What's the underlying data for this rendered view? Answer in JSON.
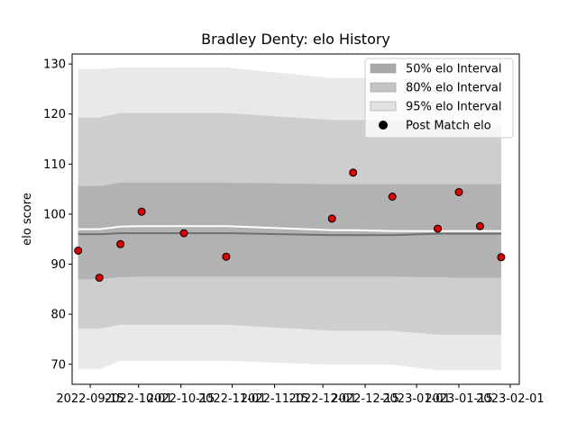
{
  "chart_data": {
    "type": "line",
    "title": "Bradley Denty: elo History",
    "xlabel": "",
    "ylabel": "elo score",
    "ylim": [
      66,
      132
    ],
    "yticks": [
      70,
      80,
      90,
      100,
      110,
      120,
      130
    ],
    "xlim": [
      "2022-09-09",
      "2023-02-04"
    ],
    "xticks": [
      "2022-09-15",
      "2022-10-01",
      "2022-10-15",
      "2022-11-01",
      "2022-11-15",
      "2022-12-01",
      "2022-12-15",
      "2023-01-01",
      "2023-01-15",
      "2023-02-01"
    ],
    "x": [
      "2022-09-11",
      "2022-09-18",
      "2022-09-25",
      "2022-10-02",
      "2022-10-16",
      "2022-10-30",
      "2022-12-04",
      "2022-12-11",
      "2022-12-24",
      "2023-01-08",
      "2023-01-15",
      "2023-01-22",
      "2023-01-29"
    ],
    "series": [
      {
        "name": "Post Match elo",
        "kind": "scatter",
        "values": [
          92.7,
          87.3,
          94.0,
          100.5,
          96.2,
          91.5,
          99.1,
          108.3,
          103.5,
          97.1,
          104.4,
          97.6,
          91.4
        ]
      },
      {
        "name": "",
        "kind": "line",
        "color": "#ffffff",
        "values": [
          97.0,
          97.0,
          97.5,
          97.6,
          97.6,
          97.6,
          96.8,
          96.8,
          96.6,
          96.6,
          96.6,
          96.6,
          96.6
        ]
      },
      {
        "name": "",
        "kind": "line",
        "color": "#707070",
        "values": [
          96.0,
          96.0,
          96.2,
          96.2,
          96.2,
          96.2,
          95.8,
          95.8,
          95.8,
          96.1,
          96.1,
          96.1,
          96.1
        ]
      },
      {
        "name": "50% elo Interval",
        "kind": "band",
        "color": "#a8a8a8",
        "lower": [
          87.0,
          87.0,
          87.4,
          87.5,
          87.5,
          87.5,
          87.5,
          87.5,
          87.5,
          87.4,
          87.3,
          87.3,
          87.3
        ],
        "upper": [
          105.6,
          105.6,
          106.3,
          106.3,
          106.3,
          106.3,
          106.0,
          106.0,
          106.0,
          106.0,
          106.0,
          106.0,
          106.0
        ]
      },
      {
        "name": "80% elo Interval",
        "kind": "band",
        "color": "#c4c4c4",
        "lower": [
          77.1,
          77.1,
          77.9,
          77.9,
          77.9,
          77.9,
          76.7,
          76.7,
          76.7,
          75.9,
          75.9,
          75.9,
          75.9
        ],
        "upper": [
          119.3,
          119.3,
          120.2,
          120.2,
          120.2,
          120.2,
          118.8,
          118.8,
          118.8,
          118.0,
          117.5,
          117.5,
          117.5
        ]
      },
      {
        "name": "95% elo Interval",
        "kind": "band",
        "color": "#e2e2e2",
        "lower": [
          69.0,
          69.0,
          70.7,
          70.7,
          70.7,
          70.7,
          69.9,
          69.9,
          69.9,
          68.8,
          68.8,
          68.8,
          68.8
        ],
        "upper": [
          129.0,
          129.0,
          129.3,
          129.3,
          129.3,
          129.3,
          127.2,
          127.2,
          127.2,
          126.7,
          126.3,
          126.3,
          126.3
        ]
      }
    ],
    "legend": {
      "position": "upper right",
      "entries": [
        {
          "label": "50% elo Interval",
          "color": "#a8a8a8",
          "marker": "patch"
        },
        {
          "label": "80% elo Interval",
          "color": "#c4c4c4",
          "marker": "patch"
        },
        {
          "label": "95% elo Interval",
          "color": "#e2e2e2",
          "marker": "patch"
        },
        {
          "label": "Post Match elo",
          "color": "#000000",
          "marker": "dot"
        }
      ]
    },
    "grid": false,
    "marker_color": "#dd0000",
    "marker_edge": "#000000"
  }
}
